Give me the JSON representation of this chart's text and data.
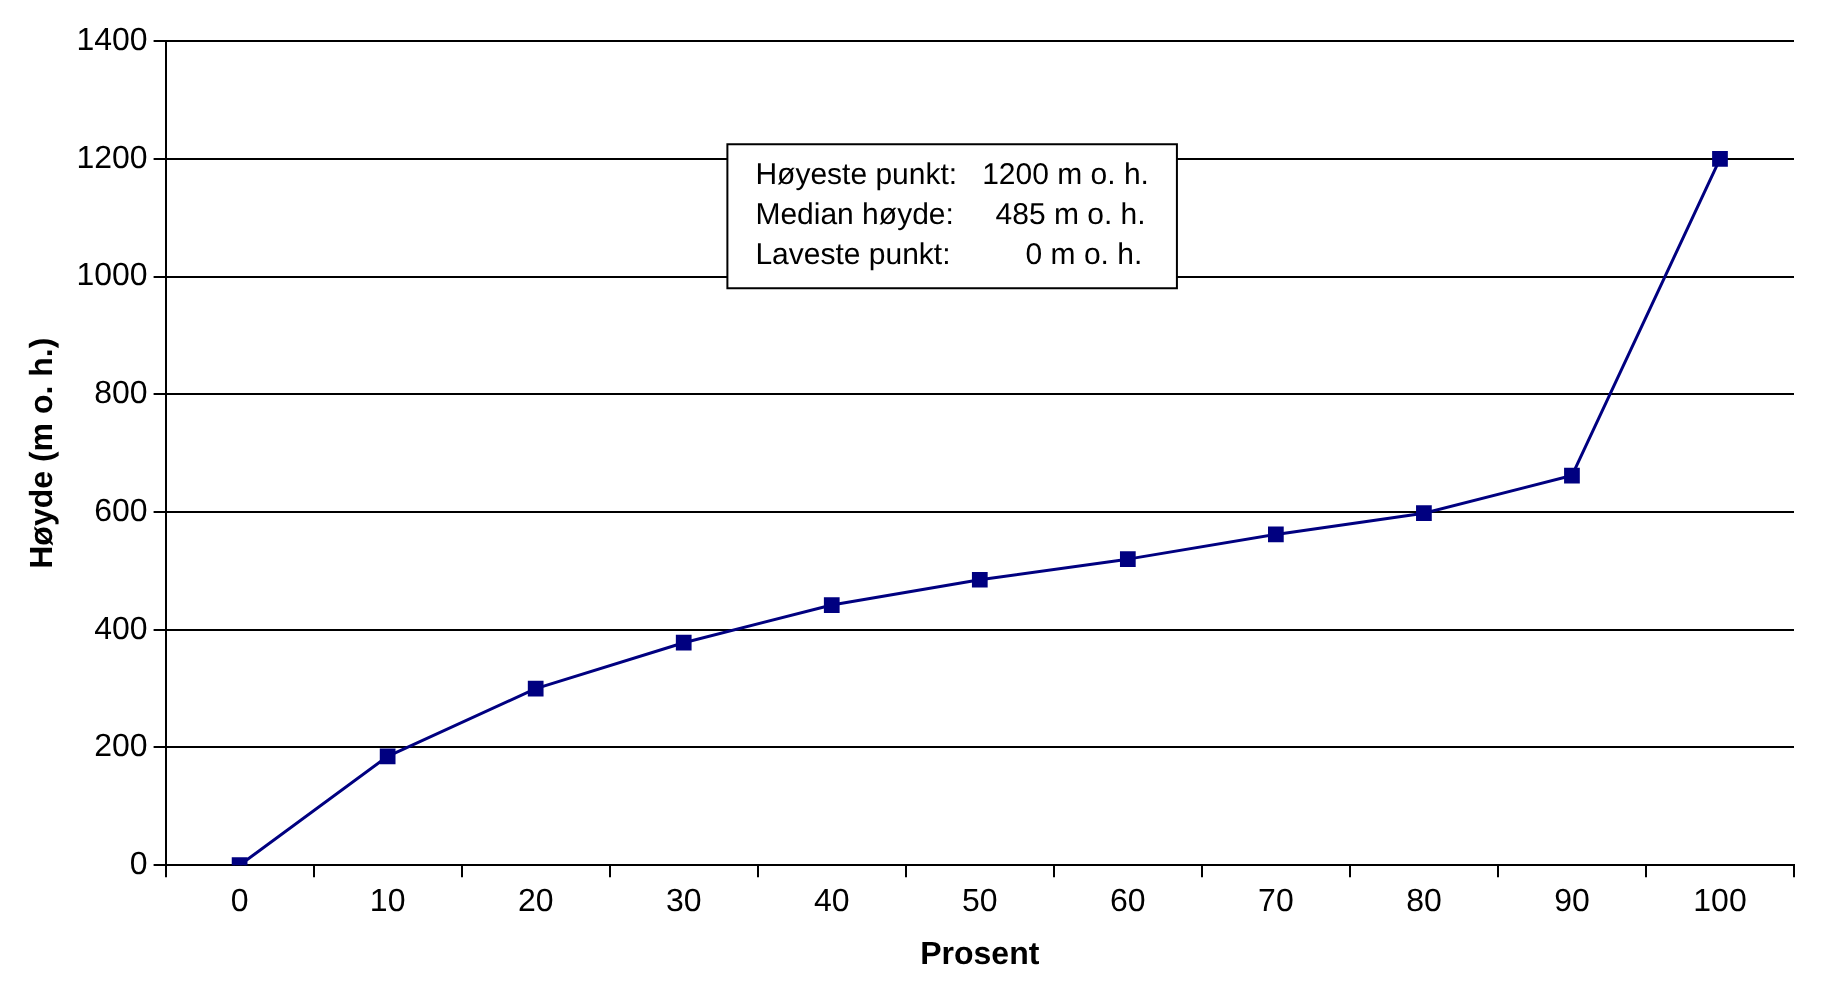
{
  "chart_data": {
    "type": "line",
    "xlabel": "Prosent",
    "ylabel": "Høyde (m o. h.)",
    "categories": [
      "0",
      "10",
      "20",
      "30",
      "40",
      "50",
      "60",
      "70",
      "80",
      "90",
      "100"
    ],
    "series": [
      {
        "color": "#000080",
        "values": [
          0,
          185,
          300,
          378,
          442,
          485,
          520,
          562,
          598,
          662,
          1200
        ]
      }
    ],
    "ylim": [
      0,
      1400
    ],
    "yticks": [
      0,
      200,
      400,
      600,
      800,
      1000,
      1200,
      1400
    ],
    "grid": "y",
    "legend": false,
    "marker": "square",
    "line_style": "solid",
    "annotations": [
      "Høyeste punkt:   1200 m o. h.",
      "Median høyde:     485 m o. h.",
      "Laveste punkt:         0 m o. h."
    ]
  }
}
